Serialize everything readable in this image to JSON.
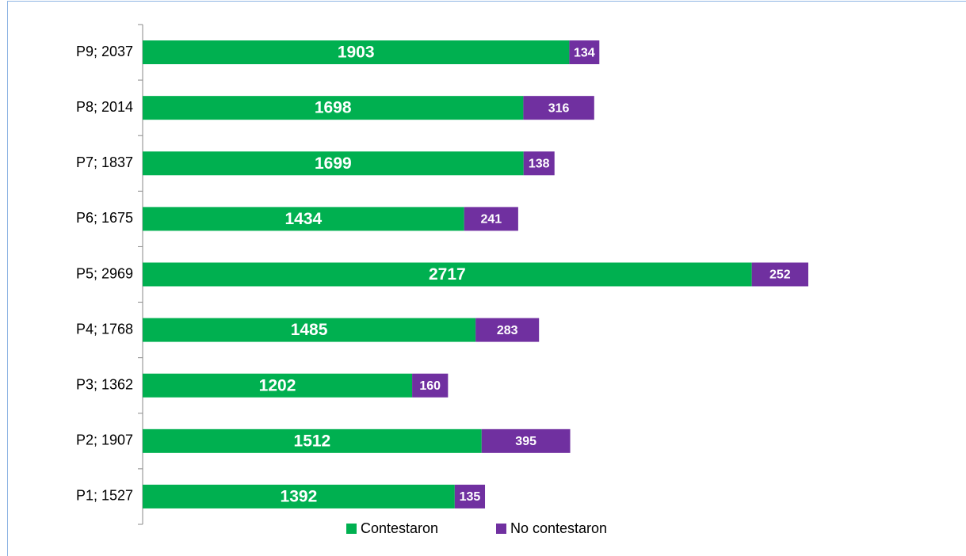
{
  "chart_data": {
    "type": "bar",
    "orientation": "horizontal",
    "stacked": true,
    "categories": [
      "P1; 1527",
      "P2; 1907",
      "P3; 1362",
      "P4; 1768",
      "P5; 2969",
      "P6; 1675",
      "P7; 1837",
      "P8; 2014",
      "P9; 2037"
    ],
    "series": [
      {
        "name": "Contestaron",
        "color": "#00b050",
        "values": [
          1392,
          1512,
          1202,
          1485,
          2717,
          1434,
          1699,
          1698,
          1903
        ]
      },
      {
        "name": "No contestaron",
        "color": "#7030a0",
        "values": [
          135,
          395,
          160,
          283,
          252,
          241,
          138,
          316,
          134
        ]
      }
    ],
    "legend": "bottom"
  }
}
